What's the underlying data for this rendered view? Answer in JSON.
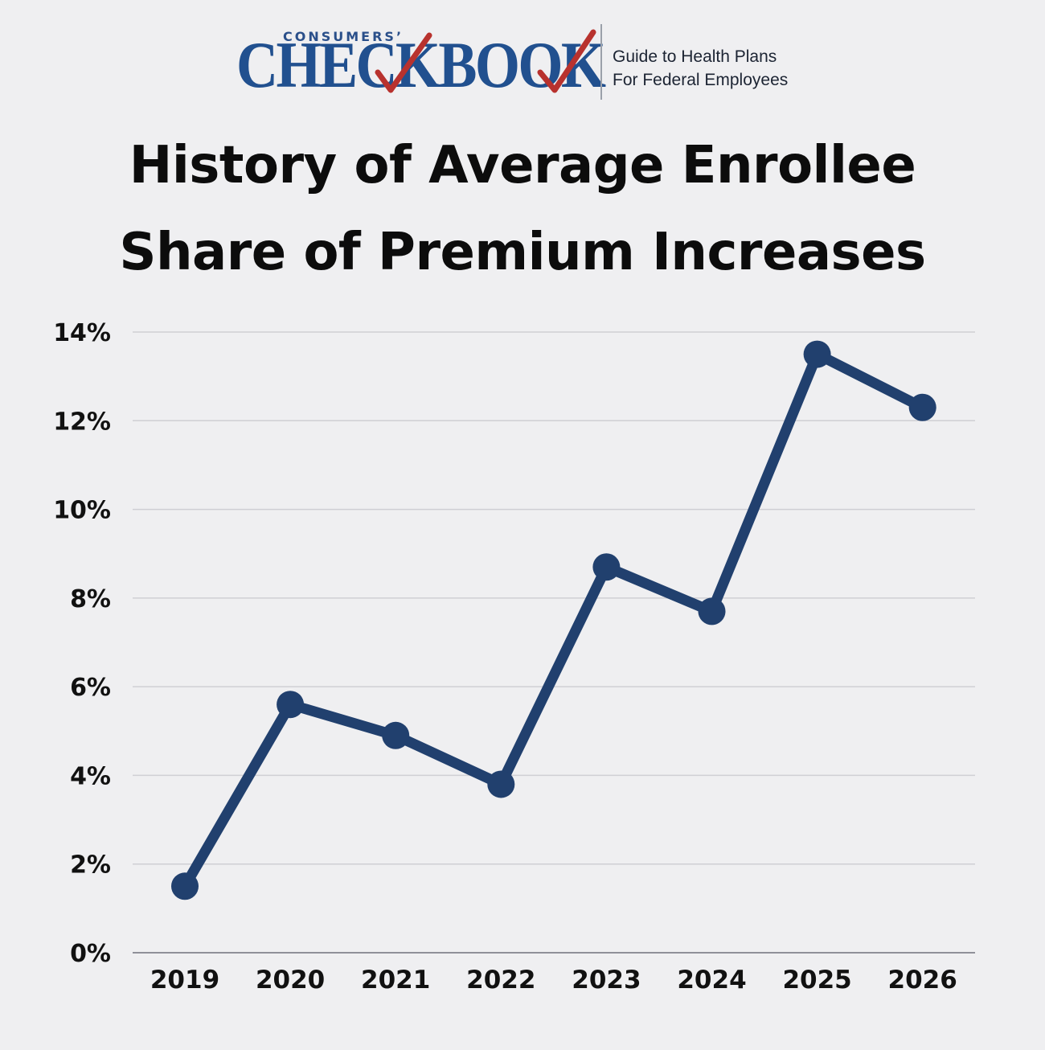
{
  "header": {
    "logo_small": "CONSUMERS’",
    "logo_main": "CHECKBOOK",
    "tagline_line1": "Guide to Health Plans",
    "tagline_line2": "For Federal Employees"
  },
  "colors": {
    "background": "#efeff1",
    "series": "#21406e",
    "brand_blue": "#21508f",
    "check_red": "#b8322e",
    "gridline": "#cfcfd4",
    "text": "#0c0c0c"
  },
  "chart_data": {
    "type": "line",
    "title": "History of Average Enrollee Share of Premium Increases",
    "title_lines": [
      "History of Average Enrollee",
      "Share of Premium Increases"
    ],
    "xlabel": "",
    "ylabel": "",
    "categories": [
      "2019",
      "2020",
      "2021",
      "2022",
      "2023",
      "2024",
      "2025",
      "2026"
    ],
    "series": [
      {
        "values": [
          1.5,
          5.6,
          4.9,
          3.8,
          8.7,
          7.7,
          13.5,
          12.3
        ]
      }
    ],
    "ylim": [
      0,
      14
    ],
    "yticks": [
      0,
      2,
      4,
      6,
      8,
      10,
      12,
      14
    ],
    "ytick_labels": [
      "0%",
      "2%",
      "4%",
      "6%",
      "8%",
      "10%",
      "12%",
      "14%"
    ],
    "grid": true,
    "legend": "none",
    "markers": true
  }
}
